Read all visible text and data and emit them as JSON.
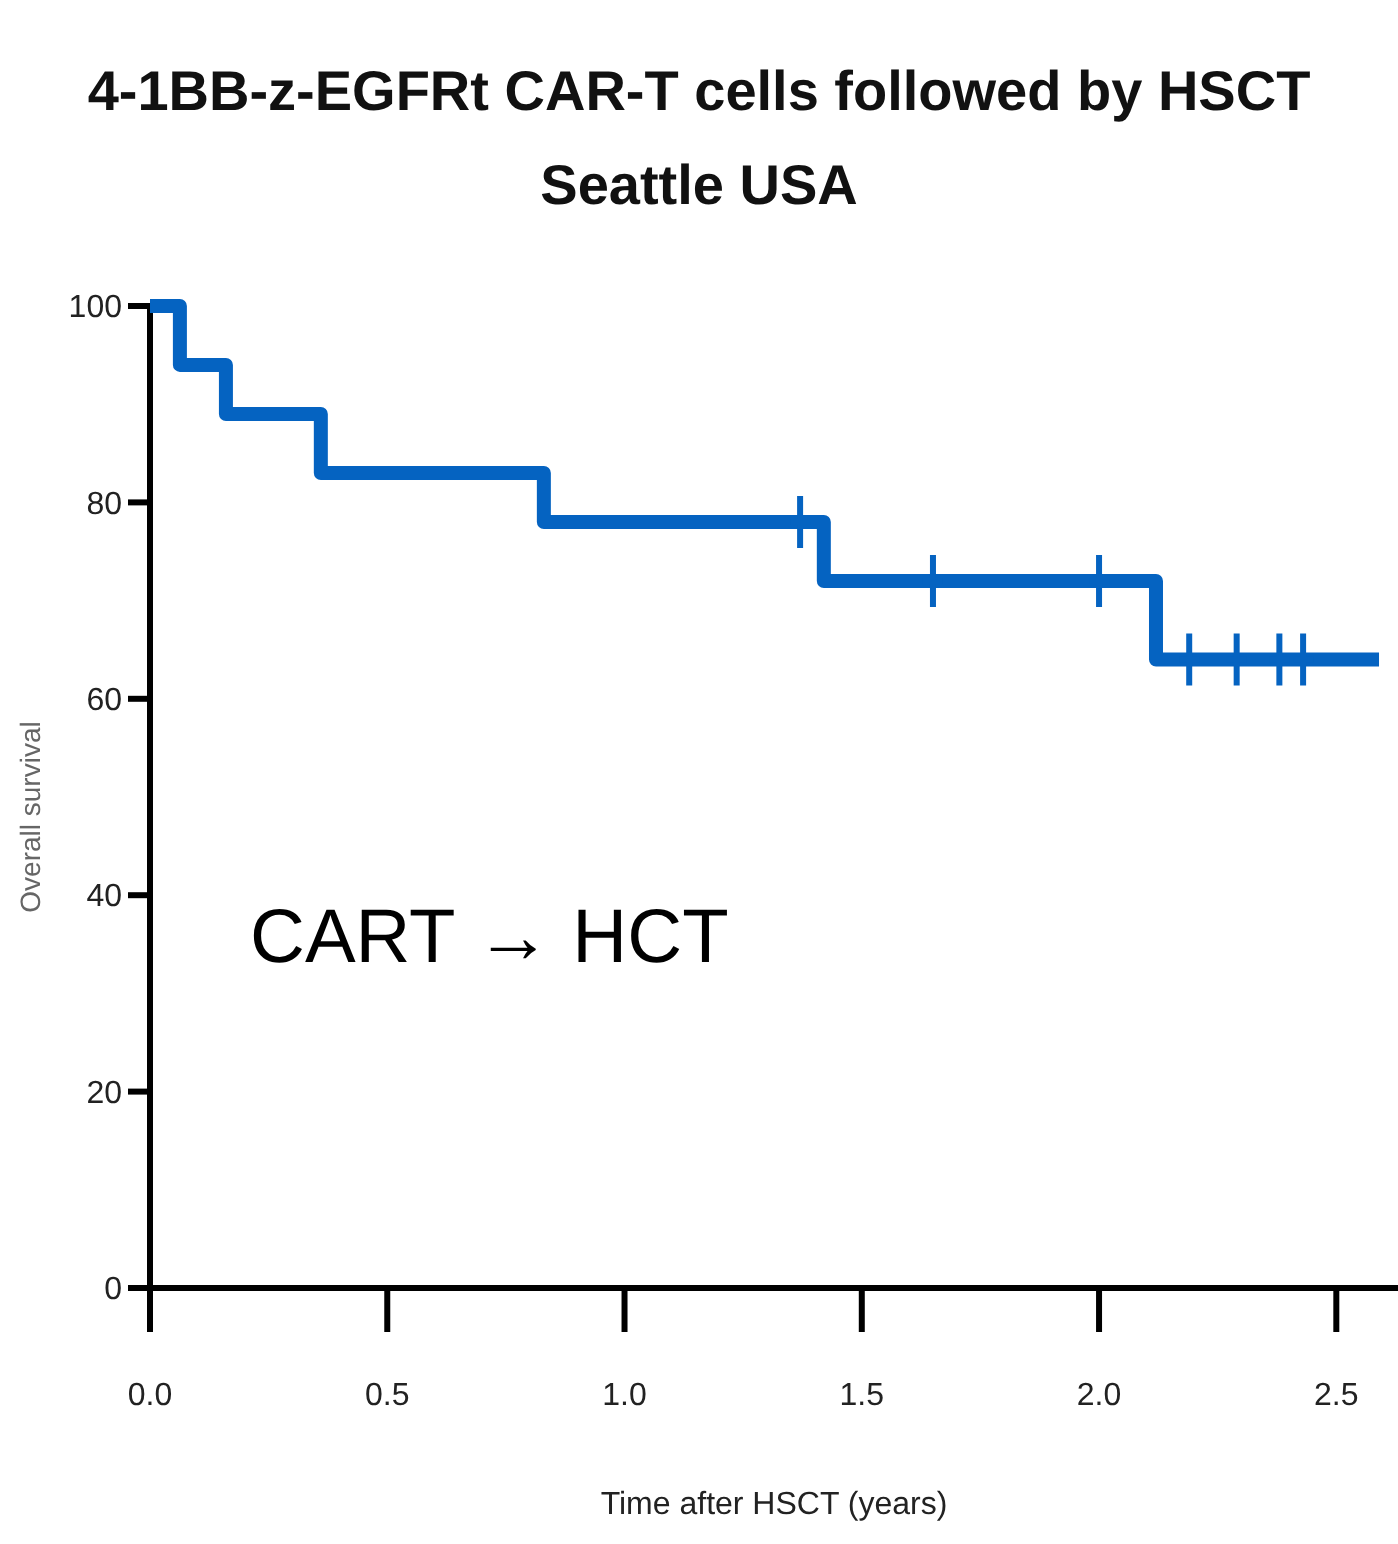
{
  "chart_data": {
    "type": "step",
    "title": "4-1BB-z-EGFRt CAR-T cells followed by HSCT",
    "subtitle": "Seattle USA",
    "xlabel": "Time after HSCT (years)",
    "ylabel": "Overall survival",
    "annotations": [
      "CART → HCT"
    ],
    "xlim": [
      0,
      2.63
    ],
    "ylim": [
      0,
      100
    ],
    "xticks": [
      {
        "value": 0,
        "label": "0.0"
      },
      {
        "value": 0.5,
        "label": "0.5"
      },
      {
        "value": 1,
        "label": "1.0"
      },
      {
        "value": 1.5,
        "label": "1.5"
      },
      {
        "value": 2,
        "label": "2.0"
      },
      {
        "value": 2.5,
        "label": "2.5"
      }
    ],
    "yticks": [
      0,
      20,
      40,
      60,
      80,
      100
    ],
    "series": [
      {
        "color": "#0563c1",
        "x": [
          0,
          0.063,
          0.16,
          0.36,
          0.83,
          1.42,
          2.12,
          2.59
        ],
        "values": [
          100,
          94,
          89,
          83,
          78,
          72,
          64,
          64
        ]
      },
      {
        "type": "scatter",
        "marker": "cross",
        "color": "#0563c1",
        "x": [
          1.37,
          1.65,
          2.0,
          2.19,
          2.29,
          2.38,
          2.43
        ],
        "values": [
          78,
          72,
          72,
          64,
          64,
          64,
          64
        ]
      }
    ]
  }
}
